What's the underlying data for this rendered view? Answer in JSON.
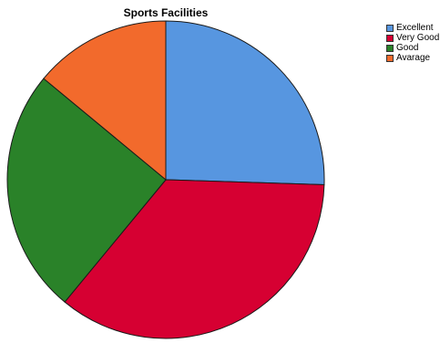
{
  "chart_data": {
    "type": "pie",
    "title": "Sports Facilities",
    "categories": [
      "Excellent",
      "Very Good",
      "Good",
      "Avarage"
    ],
    "values": [
      25.5,
      35.5,
      25,
      14
    ],
    "colors": [
      "#5796e0",
      "#d60032",
      "#2a8229",
      "#f26a2c"
    ],
    "start_angle_deg": 0,
    "direction": "clockwise",
    "legend_position": "top-right"
  }
}
